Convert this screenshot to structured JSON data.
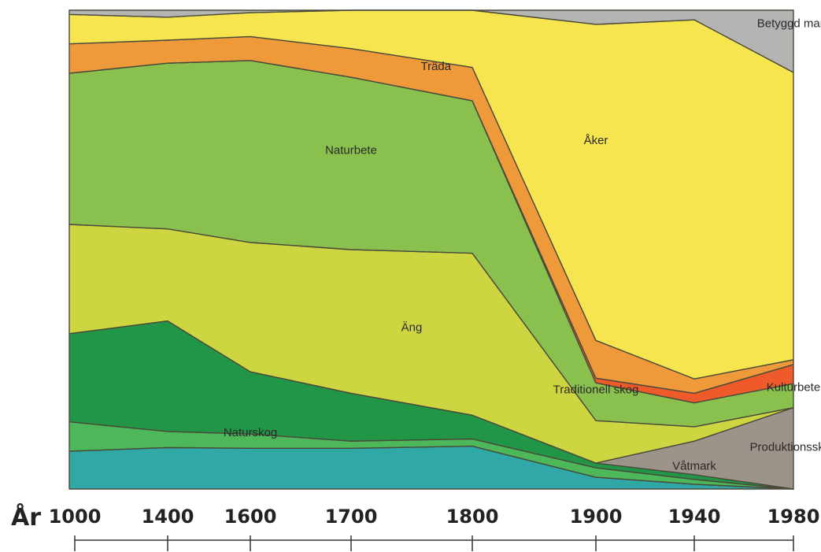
{
  "chart_data": {
    "type": "area",
    "stacked": true,
    "normalized": true,
    "xlabel": "År",
    "categories": [
      "1000",
      "1400",
      "1600",
      "1700",
      "1800",
      "1900",
      "1940",
      "1980"
    ],
    "ylim": [
      0,
      100
    ],
    "grid": false,
    "legend": "labels-in-areas",
    "series": [
      {
        "name": "Våtmark",
        "color": "#2fa8a6",
        "values": [
          9,
          9,
          8.5,
          8.5,
          9,
          2.5,
          1,
          0
        ],
        "label_pos": [
          6,
          4
        ]
      },
      {
        "name": "Naturskog",
        "color": "#4cb85a",
        "values": [
          7,
          3.5,
          3,
          1.5,
          1.5,
          2,
          1,
          0
        ],
        "label_pos": [
          2,
          11
        ]
      },
      {
        "name": "Traditionell skog",
        "color": "#229647",
        "values": [
          21,
          24,
          13,
          10,
          5,
          1,
          1,
          0
        ],
        "label_pos": [
          5,
          20
        ]
      },
      {
        "name": "Produktionsskog",
        "color": "#9c938b",
        "values": [
          0,
          0,
          0,
          0,
          0,
          0,
          7,
          17
        ],
        "label_pos": [
          7.2,
          8
        ]
      },
      {
        "name": "Äng",
        "color": "#cdd640",
        "values": [
          26,
          20,
          27,
          30,
          34,
          9,
          3,
          0
        ],
        "label_pos": [
          3.5,
          33
        ]
      },
      {
        "name": "Naturbete",
        "color": "#8ac04e",
        "values": [
          36,
          36,
          38,
          36,
          32,
          8,
          5,
          5
        ],
        "label_pos": [
          3,
          70
        ]
      },
      {
        "name": "Kulturbete",
        "color": "#ee5a2a",
        "values": [
          0,
          0,
          0,
          0,
          0,
          1,
          2,
          4
        ],
        "label_pos": [
          7.5,
          20.5
        ]
      },
      {
        "name": "Träda",
        "color": "#ef9a3a",
        "values": [
          7,
          5,
          5,
          6,
          7,
          8,
          3,
          1
        ],
        "label_pos": [
          3.7,
          87.5
        ]
      },
      {
        "name": "Åker",
        "color": "#f6e54e",
        "values": [
          7,
          5,
          5,
          8,
          12,
          67,
          75,
          60
        ],
        "label_pos": [
          5,
          72
        ]
      },
      {
        "name": "Betyggd mark",
        "color": "#b4b4b2",
        "values": [
          1,
          1.5,
          0.5,
          0,
          0,
          3,
          2,
          13
        ],
        "label_pos": [
          7.6,
          96.5
        ]
      }
    ]
  }
}
